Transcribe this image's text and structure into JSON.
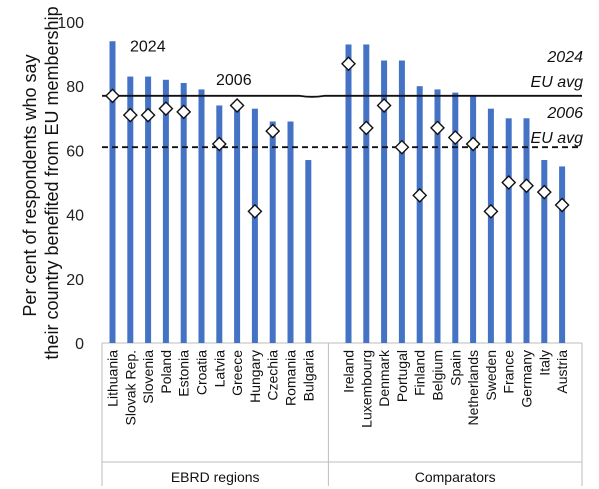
{
  "chart_data": {
    "type": "bar",
    "ylabel": "Per cent of respondents who say their country benefited from EU membership",
    "ylim": [
      0,
      100
    ],
    "yticks": [
      0,
      20,
      40,
      60,
      80,
      100
    ],
    "colors": {
      "bars": "#4472C4",
      "avg_2024_line": "#111111",
      "avg_2006_line": "#111111",
      "markers_fill": "#ffffff",
      "markers_stroke": "#111111",
      "label_2024": "#4472C4"
    },
    "groups": [
      {
        "name": "EBRD regions",
        "categories": [
          "Lithuania",
          "Slovak Rep.",
          "Slovenia",
          "Poland",
          "Estonia",
          "Croatia",
          "Latvia",
          "Greece",
          "Hungary",
          "Czechia",
          "Romania",
          "Bulgaria"
        ],
        "values_2024": [
          94,
          83,
          83,
          82,
          81,
          79,
          74,
          74,
          73,
          69,
          69,
          57
        ],
        "values_2006": [
          77,
          71,
          71,
          73,
          72,
          null,
          62,
          74,
          41,
          66,
          null,
          null
        ]
      },
      {
        "name": "Comparators",
        "categories": [
          "Ireland",
          "Luxembourg",
          "Denmark",
          "Portugal",
          "Finland",
          "Belgium",
          "Spain",
          "Netherlands",
          "Sweden",
          "France",
          "Germany",
          "Italy",
          "Austria"
        ],
        "values_2024": [
          93,
          93,
          88,
          88,
          80,
          79,
          78,
          77,
          73,
          70,
          70,
          57,
          55
        ],
        "values_2006": [
          87,
          67,
          74,
          61,
          46,
          67,
          64,
          62,
          41,
          50,
          49,
          47,
          43
        ]
      }
    ],
    "series_labels": {
      "bars": "2024",
      "markers": "2006"
    },
    "reference_lines": [
      {
        "label_line1": "2024",
        "label_line2": "EU avg",
        "value": 77,
        "style": "solid"
      },
      {
        "label_line1": "2006",
        "label_line2": "EU avg",
        "value": 61,
        "style": "dashed"
      }
    ]
  }
}
